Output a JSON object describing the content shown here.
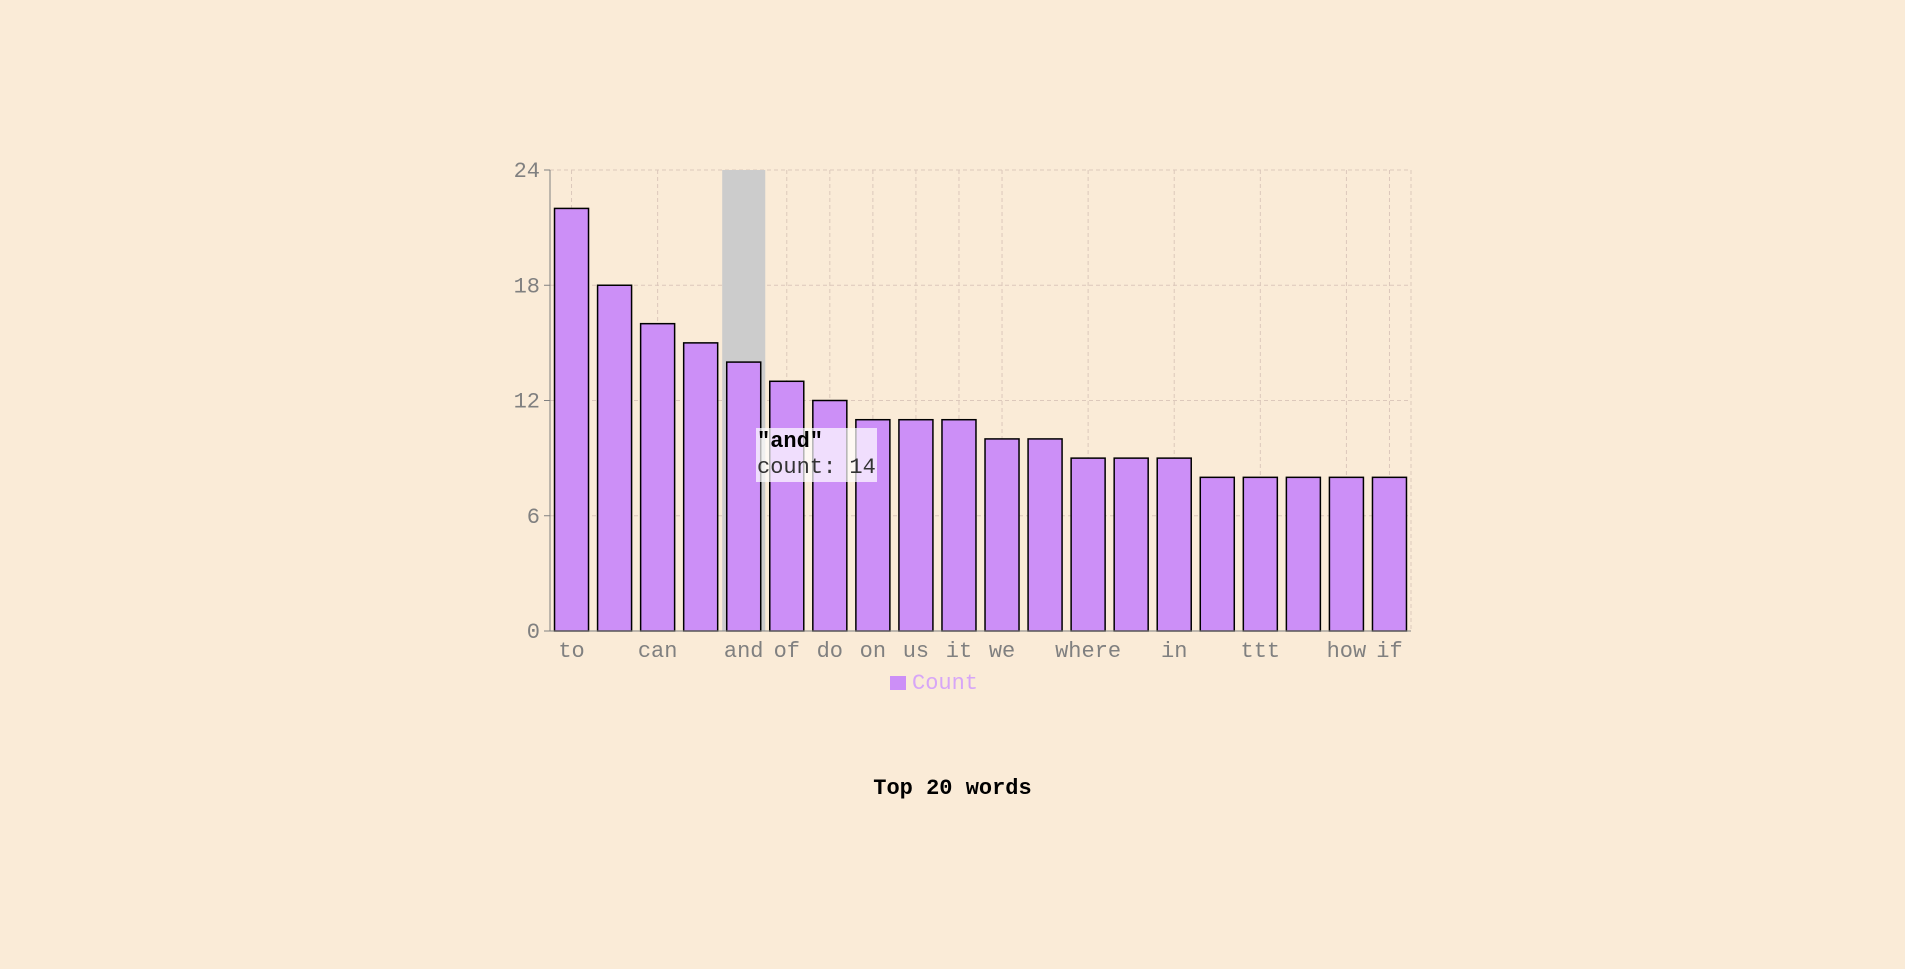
{
  "chart_data": {
    "type": "bar",
    "title": "Top 20 words",
    "categories": [
      "to",
      "",
      "can",
      "",
      "and",
      "of",
      "do",
      "on",
      "us",
      "it",
      "we",
      "",
      "where",
      "",
      "in",
      "",
      "ttt",
      "",
      "how",
      "if"
    ],
    "series": [
      {
        "name": "Count",
        "values": [
          22,
          18,
          16,
          15,
          14,
          13,
          12,
          11,
          11,
          11,
          10,
          10,
          9,
          9,
          9,
          8,
          8,
          8,
          8,
          8
        ]
      }
    ],
    "ylim": [
      0,
      24
    ],
    "yticks": [
      0,
      6,
      12,
      18,
      24
    ],
    "grid": true,
    "legend": "bottom-center",
    "highlighted_index": 4,
    "tooltip": {
      "title": "\"and\"",
      "line": "count: 14"
    },
    "colors": {
      "bar_fill": "#cc8ff7",
      "bar_stroke": "#000000",
      "highlight": "#cccccc",
      "grid": "#dcc8bb",
      "axis_text": "#808080",
      "legend_text": "#d7a6f7",
      "background": "#faebd7"
    }
  }
}
